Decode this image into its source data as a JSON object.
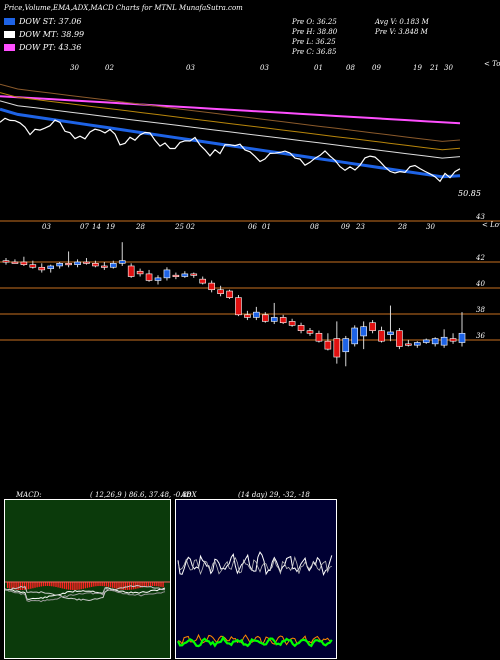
{
  "header": {
    "title": "Price,Volume,EMA,ADX,MACD Charts for MTNL MunafaSutra.com",
    "legend": [
      {
        "label": "DOW ST: 37.06",
        "color": "#1e63e6"
      },
      {
        "label": "DOW MT: 38.99",
        "color": "#ffffff"
      },
      {
        "label": "DOW PT: 43.36",
        "color": "#ff4fff"
      }
    ],
    "stats": {
      "pre_o": "Pre   O: 36.25",
      "pre_h": "Pre   H: 38.80",
      "pre_l": "Pre   L: 36.25",
      "pre_c": "Pre   C: 36.85",
      "avg_v": "Avg V: 0.183  M",
      "pre_v": "Pre   V: 3.848  M"
    }
  },
  "chart_data": [
    {
      "type": "line",
      "title": "EMA",
      "top_label": "< Tops",
      "value_label": "50.85",
      "date_labels": [
        "30",
        "02",
        "03",
        "03",
        "01",
        "08",
        "09",
        "19",
        "21",
        "30"
      ],
      "series": [
        {
          "name": "EMA fast",
          "color": "#1e63e6",
          "values": [
            64,
            63,
            62.5,
            62,
            61.5,
            61,
            60.5,
            60,
            59.5,
            59,
            58.5,
            58,
            57.5,
            57,
            56.5,
            56,
            55.5,
            55,
            54.5,
            54,
            53.5,
            53,
            52.5,
            52,
            51.5,
            51,
            51.2
          ]
        },
        {
          "name": "EMA long",
          "color": "#ff4fff",
          "values": [
            66.5,
            66.3,
            66.1,
            65.9,
            65.7,
            65.5,
            65.3,
            65.1,
            64.9,
            64.7,
            64.5,
            64.3,
            64.1,
            63.9,
            63.7,
            63.5,
            63.3,
            63.1,
            62.9,
            62.7,
            62.5,
            62.3,
            62.1,
            61.9,
            61.7,
            61.5,
            61.3
          ]
        }
      ]
    },
    {
      "type": "candlestick",
      "title": "Price",
      "lower_label": "< Lows",
      "y_ticks": [
        "43",
        "42",
        "40",
        "38",
        "36"
      ],
      "levels": [
        43,
        42,
        40,
        38,
        36
      ],
      "date_labels": [
        "03",
        "07",
        "14",
        "19",
        "28",
        "25",
        "02",
        "06",
        "01",
        "08",
        "09",
        "23",
        "28",
        "30"
      ],
      "candles": [
        {
          "o": 42.1,
          "h": 42.3,
          "l": 41.8,
          "c": 42.0
        },
        {
          "o": 42.0,
          "h": 42.2,
          "l": 41.9,
          "c": 41.95
        },
        {
          "o": 42.0,
          "h": 42.4,
          "l": 41.7,
          "c": 41.8
        },
        {
          "o": 41.8,
          "h": 42.1,
          "l": 41.5,
          "c": 41.6
        },
        {
          "o": 41.6,
          "h": 41.9,
          "l": 41.2,
          "c": 41.4
        },
        {
          "o": 41.5,
          "h": 41.8,
          "l": 41.2,
          "c": 41.7
        },
        {
          "o": 41.7,
          "h": 42.0,
          "l": 41.5,
          "c": 41.9
        },
        {
          "o": 41.9,
          "h": 42.8,
          "l": 41.6,
          "c": 41.8
        },
        {
          "o": 41.8,
          "h": 42.2,
          "l": 41.6,
          "c": 42.0
        },
        {
          "o": 42.0,
          "h": 42.3,
          "l": 41.8,
          "c": 41.9
        },
        {
          "o": 41.9,
          "h": 42.1,
          "l": 41.6,
          "c": 41.7
        },
        {
          "o": 41.7,
          "h": 42.0,
          "l": 41.4,
          "c": 41.6
        },
        {
          "o": 41.6,
          "h": 42.1,
          "l": 41.5,
          "c": 41.9
        },
        {
          "o": 41.9,
          "h": 43.5,
          "l": 41.7,
          "c": 42.1
        },
        {
          "o": 41.7,
          "h": 41.9,
          "l": 40.8,
          "c": 40.9
        },
        {
          "o": 41.3,
          "h": 41.5,
          "l": 40.9,
          "c": 41.1
        },
        {
          "o": 41.1,
          "h": 41.4,
          "l": 40.5,
          "c": 40.6
        },
        {
          "o": 40.6,
          "h": 41.0,
          "l": 40.3,
          "c": 40.8
        },
        {
          "o": 40.8,
          "h": 41.6,
          "l": 40.6,
          "c": 41.4
        },
        {
          "o": 41.0,
          "h": 41.2,
          "l": 40.7,
          "c": 40.9
        },
        {
          "o": 40.9,
          "h": 41.3,
          "l": 40.8,
          "c": 41.1
        },
        {
          "o": 41.1,
          "h": 41.2,
          "l": 40.8,
          "c": 41.0
        },
        {
          "o": 40.7,
          "h": 40.9,
          "l": 40.3,
          "c": 40.4
        },
        {
          "o": 40.4,
          "h": 40.6,
          "l": 39.7,
          "c": 39.9
        },
        {
          "o": 39.9,
          "h": 40.2,
          "l": 39.4,
          "c": 39.6
        },
        {
          "o": 39.8,
          "h": 39.9,
          "l": 39.2,
          "c": 39.3
        },
        {
          "o": 39.3,
          "h": 39.5,
          "l": 37.9,
          "c": 38.0
        },
        {
          "o": 38.0,
          "h": 38.3,
          "l": 37.6,
          "c": 37.8
        },
        {
          "o": 37.8,
          "h": 38.6,
          "l": 37.6,
          "c": 38.2
        },
        {
          "o": 38.0,
          "h": 38.2,
          "l": 37.4,
          "c": 37.5
        },
        {
          "o": 37.5,
          "h": 38.9,
          "l": 37.3,
          "c": 37.8
        },
        {
          "o": 37.8,
          "h": 38.0,
          "l": 37.3,
          "c": 37.4
        },
        {
          "o": 37.5,
          "h": 37.7,
          "l": 37.1,
          "c": 37.2
        },
        {
          "o": 37.2,
          "h": 37.4,
          "l": 36.6,
          "c": 36.8
        },
        {
          "o": 36.8,
          "h": 37.0,
          "l": 36.4,
          "c": 36.6
        },
        {
          "o": 36.6,
          "h": 36.8,
          "l": 35.9,
          "c": 36.0
        },
        {
          "o": 36.0,
          "h": 36.6,
          "l": 35.3,
          "c": 35.4
        },
        {
          "o": 36.2,
          "h": 37.5,
          "l": 34.3,
          "c": 34.8
        },
        {
          "o": 35.2,
          "h": 36.4,
          "l": 34.1,
          "c": 36.2
        },
        {
          "o": 35.8,
          "h": 37.2,
          "l": 35.6,
          "c": 37.0
        },
        {
          "o": 36.4,
          "h": 37.5,
          "l": 35.4,
          "c": 37.1
        },
        {
          "o": 37.4,
          "h": 37.6,
          "l": 36.6,
          "c": 36.8
        },
        {
          "o": 36.8,
          "h": 37.1,
          "l": 35.9,
          "c": 36.0
        },
        {
          "o": 36.5,
          "h": 38.7,
          "l": 36.0,
          "c": 36.7
        },
        {
          "o": 36.8,
          "h": 37.0,
          "l": 35.4,
          "c": 35.6
        },
        {
          "o": 35.8,
          "h": 36.1,
          "l": 35.6,
          "c": 35.7
        },
        {
          "o": 35.7,
          "h": 36.0,
          "l": 35.5,
          "c": 35.9
        },
        {
          "o": 35.9,
          "h": 36.2,
          "l": 35.8,
          "c": 36.1
        },
        {
          "o": 35.8,
          "h": 36.3,
          "l": 35.6,
          "c": 36.2
        },
        {
          "o": 35.7,
          "h": 36.9,
          "l": 35.5,
          "c": 36.3
        },
        {
          "o": 36.2,
          "h": 36.6,
          "l": 35.8,
          "c": 36.0
        },
        {
          "o": 35.9,
          "h": 38.2,
          "l": 35.6,
          "c": 36.6
        }
      ]
    },
    {
      "type": "line",
      "title": "MACD",
      "label": "MACD:",
      "params": "( 12,26,9 ) 86.6, 37.48, -0.88"
    },
    {
      "type": "line",
      "title": "ADX",
      "label": "ADX",
      "params": "(14  day) 29,  -32,  -18"
    }
  ],
  "colors": {
    "bull": "#1e63e6",
    "bear": "#e01010",
    "level_line": "#c8701f",
    "macd_bg": "#0b3a0b",
    "adx_bg": "#000033",
    "adx_line": "#ffffff",
    "plus_di": "#00ff00",
    "minus_di": "#ff8a00"
  }
}
